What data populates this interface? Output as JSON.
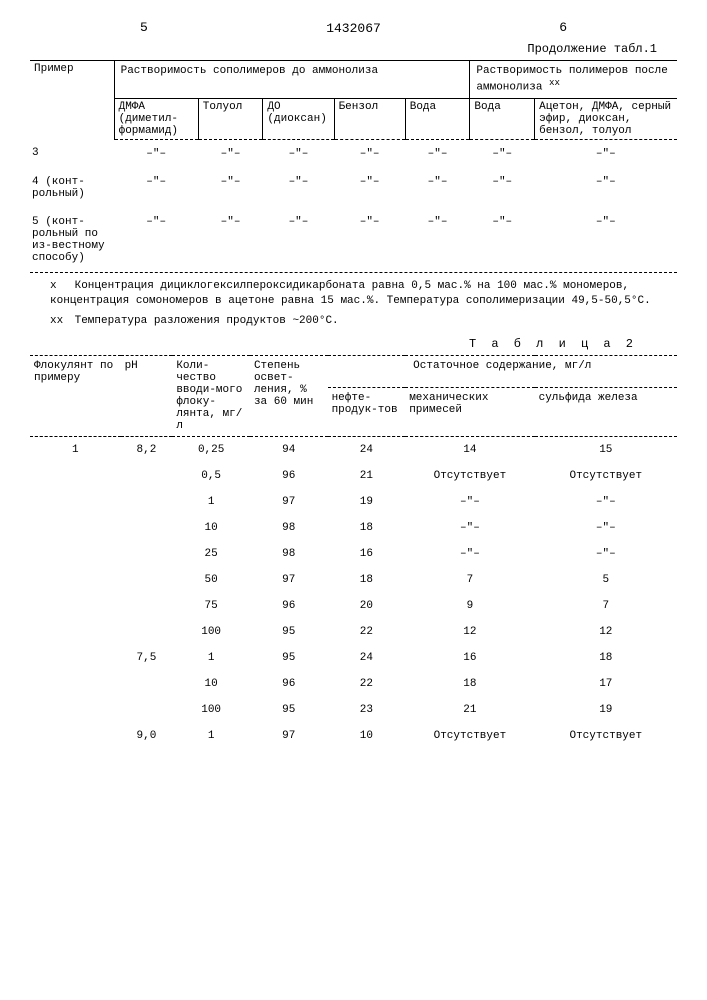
{
  "page_left": "5",
  "page_right": "6",
  "doc_number": "1432067",
  "continuation": "Продолжение табл.1",
  "table1": {
    "col_primer": "Пример",
    "group_before": "Растворимость сополимеров до аммонолиза",
    "group_after": "Растворимость полимеров после аммонолиза",
    "xx": "хх",
    "cols_before": {
      "dmfa": "ДМФА (диметил-формамид)",
      "toluol": "Толуол",
      "do": "ДО (диоксан)",
      "benzol": "Бензол",
      "voda": "Вода"
    },
    "cols_after": {
      "voda": "Вода",
      "rest": "Ацетон, ДМФА, серный эфир, диоксан, бензол, толуол"
    },
    "rows": [
      {
        "label": "3",
        "v": [
          "–\"–",
          "–\"–",
          "–\"–",
          "–\"–",
          "–\"–",
          "–\"–",
          "–\"–"
        ]
      },
      {
        "label": "4 (конт-рольный)",
        "v": [
          "–\"–",
          "–\"–",
          "–\"–",
          "–\"–",
          "–\"–",
          "–\"–",
          "–\"–"
        ]
      },
      {
        "label": "5 (конт-рольный по из-вестному способу)",
        "v": [
          "–\"–",
          "–\"–",
          "–\"–",
          "–\"–",
          "–\"–",
          "–\"–",
          "–\"–"
        ]
      }
    ],
    "footnote_x": "Концентрация дициклогексилпероксидикарбоната равна 0,5 мас.% на 100 мас.% мономеров, концентрация сомономеров в ацетоне равна 15 мас.%. Температура сополимеризации 49,5-50,5°С.",
    "footnote_xx": "Температура разложения продуктов ~200°С."
  },
  "table2_title": "Т а б л и ц а  2",
  "table2": {
    "col_flok": "Флокулянт по примеру",
    "col_ph": "pH",
    "col_qty": "Коли-чество вводи-мого флоку-лянта, мг/л",
    "col_deg": "Степень освет-ления, % за 60 мин",
    "group_residual": "Остаточное содержание, мг/л",
    "col_oil": "нефте-продук-тов",
    "col_mech": "механических примесей",
    "col_sulf": "сульфида железа",
    "rows": [
      {
        "f": "1",
        "ph": "8,2",
        "q": "0,25",
        "d": "94",
        "o": "24",
        "m": "14",
        "s": "15"
      },
      {
        "f": "",
        "ph": "",
        "q": "0,5",
        "d": "96",
        "o": "21",
        "m": "Отсутствует",
        "s": "Отсутствует"
      },
      {
        "f": "",
        "ph": "",
        "q": "1",
        "d": "97",
        "o": "19",
        "m": "–\"–",
        "s": "–\"–"
      },
      {
        "f": "",
        "ph": "",
        "q": "10",
        "d": "98",
        "o": "18",
        "m": "–\"–",
        "s": "–\"–"
      },
      {
        "f": "",
        "ph": "",
        "q": "25",
        "d": "98",
        "o": "16",
        "m": "–\"–",
        "s": "–\"–"
      },
      {
        "f": "",
        "ph": "",
        "q": "50",
        "d": "97",
        "o": "18",
        "m": "7",
        "s": "5"
      },
      {
        "f": "",
        "ph": "",
        "q": "75",
        "d": "96",
        "o": "20",
        "m": "9",
        "s": "7"
      },
      {
        "f": "",
        "ph": "",
        "q": "100",
        "d": "95",
        "o": "22",
        "m": "12",
        "s": "12"
      },
      {
        "f": "",
        "ph": "7,5",
        "q": "1",
        "d": "95",
        "o": "24",
        "m": "16",
        "s": "18"
      },
      {
        "f": "",
        "ph": "",
        "q": "10",
        "d": "96",
        "o": "22",
        "m": "18",
        "s": "17"
      },
      {
        "f": "",
        "ph": "",
        "q": "100",
        "d": "95",
        "o": "23",
        "m": "21",
        "s": "19"
      },
      {
        "f": "",
        "ph": "9,0",
        "q": "1",
        "d": "97",
        "o": "10",
        "m": "Отсутствует",
        "s": "Отсутствует"
      }
    ]
  }
}
